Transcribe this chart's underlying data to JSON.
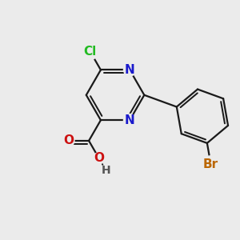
{
  "bg_color": "#ebebeb",
  "bond_color": "#1a1a1a",
  "bond_width": 1.6,
  "atom_colors": {
    "C": "#1a1a1a",
    "N": "#1a1acc",
    "O": "#cc1111",
    "Cl": "#22bb22",
    "Br": "#bb6600",
    "H": "#555555"
  },
  "font_size": 11
}
